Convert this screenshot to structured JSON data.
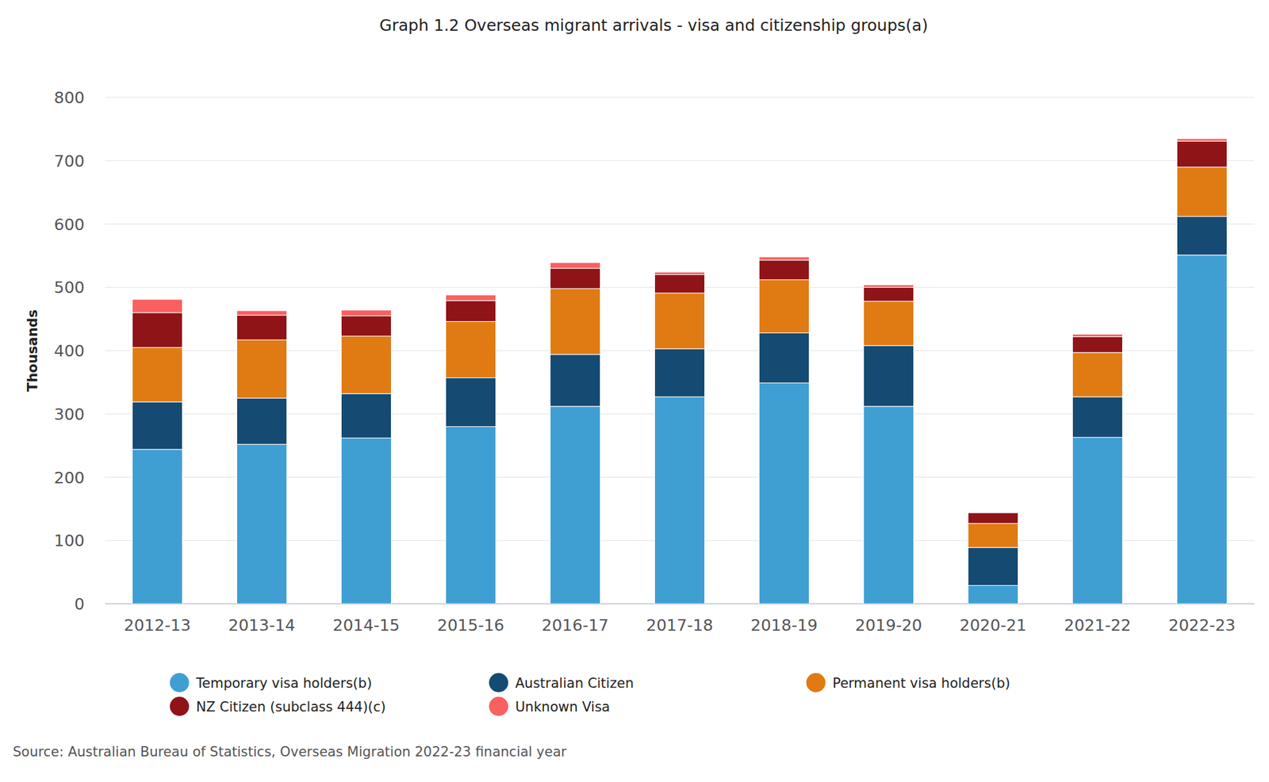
{
  "chart_data": {
    "type": "bar",
    "stacked": true,
    "title": "Graph 1.2 Overseas migrant arrivals - visa and citizenship groups(a)",
    "y_label": "Thousands",
    "source": "Source: Australian Bureau of Statistics, Overseas Migration 2022-23 financial year",
    "categories": [
      "2012-13",
      "2013-14",
      "2014-15",
      "2015-16",
      "2016-17",
      "2017-18",
      "2018-19",
      "2019-20",
      "2020-21",
      "2021-22",
      "2022-23"
    ],
    "series": [
      {
        "name": "Temporary visa holders(b)",
        "color": "#3f9fd3",
        "values": [
          244,
          252,
          262,
          280,
          312,
          327,
          349,
          312,
          29,
          263,
          551
        ]
      },
      {
        "name": "Australian Citizen",
        "color": "#154a73",
        "values": [
          75,
          73,
          70,
          77,
          82,
          76,
          79,
          96,
          60,
          64,
          61
        ]
      },
      {
        "name": "Permanent visa holders(b)",
        "color": "#e07b13",
        "values": [
          86,
          92,
          91,
          89,
          104,
          88,
          84,
          70,
          38,
          70,
          78
        ]
      },
      {
        "name": "NZ Citizen (subclass 444)(c)",
        "color": "#8f1418",
        "values": [
          55,
          39,
          32,
          33,
          32,
          29,
          31,
          22,
          17,
          25,
          41
        ]
      },
      {
        "name": "Unknown Visa",
        "color": "#f96060",
        "values": [
          21,
          7,
          9,
          9,
          9,
          4,
          5,
          4,
          1,
          4,
          4
        ]
      }
    ],
    "ylim": [
      0,
      800
    ],
    "yticks": [
      0,
      100,
      200,
      300,
      400,
      500,
      600,
      700,
      800
    ],
    "grid": true,
    "legend": "bottom"
  }
}
